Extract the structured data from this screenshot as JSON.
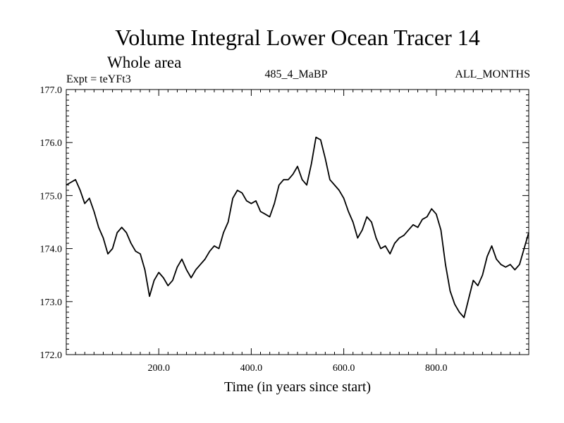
{
  "chart_data": {
    "type": "line",
    "title": "Volume Integral Lower Ocean Tracer 14",
    "subtitle": "Whole area",
    "experiment_label": "Expt = teYFt3",
    "center_label": "485_4_MaBP",
    "right_label": "ALL_MONTHS",
    "xlabel": "Time (in years since start)",
    "ylabel": "",
    "xlim": [
      0,
      1000
    ],
    "ylim": [
      172.0,
      177.0
    ],
    "x_ticks": [
      200,
      400,
      600,
      800
    ],
    "x_tick_labels": [
      "200.0",
      "400.0",
      "600.0",
      "800.0"
    ],
    "y_ticks": [
      172,
      173,
      174,
      175,
      176,
      177
    ],
    "y_tick_labels": [
      "172.0",
      "173.0",
      "174.0",
      "175.0",
      "176.0",
      "177.0"
    ],
    "line_color": "#000000",
    "series": [
      {
        "name": "Lower Ocean Tracer 14",
        "x": [
          0,
          10,
          20,
          30,
          40,
          50,
          60,
          70,
          80,
          90,
          100,
          110,
          120,
          130,
          140,
          150,
          160,
          170,
          180,
          190,
          200,
          210,
          220,
          230,
          240,
          250,
          260,
          270,
          280,
          290,
          300,
          310,
          320,
          330,
          340,
          350,
          360,
          370,
          380,
          390,
          400,
          410,
          420,
          430,
          440,
          450,
          460,
          470,
          480,
          490,
          500,
          510,
          520,
          530,
          540,
          550,
          560,
          570,
          580,
          590,
          600,
          610,
          620,
          630,
          640,
          650,
          660,
          670,
          680,
          690,
          700,
          710,
          720,
          730,
          740,
          750,
          760,
          770,
          780,
          790,
          800,
          810,
          820,
          830,
          840,
          850,
          860,
          870,
          880,
          890,
          900,
          910,
          920,
          930,
          940,
          950,
          960,
          970,
          980,
          990,
          1000
        ],
        "values": [
          175.2,
          175.25,
          175.3,
          175.1,
          174.85,
          174.95,
          174.7,
          174.4,
          174.2,
          173.9,
          174.0,
          174.3,
          174.4,
          174.3,
          174.1,
          173.95,
          173.9,
          173.6,
          173.1,
          173.4,
          173.55,
          173.45,
          173.3,
          173.4,
          173.65,
          173.8,
          173.6,
          173.45,
          173.6,
          173.7,
          173.8,
          173.95,
          174.05,
          174.0,
          174.3,
          174.5,
          174.95,
          175.1,
          175.05,
          174.9,
          174.85,
          174.9,
          174.7,
          174.65,
          174.6,
          174.85,
          175.2,
          175.3,
          175.3,
          175.4,
          175.55,
          175.3,
          175.2,
          175.6,
          176.1,
          176.05,
          175.7,
          175.3,
          175.2,
          175.1,
          174.95,
          174.7,
          174.5,
          174.2,
          174.35,
          174.6,
          174.5,
          174.2,
          174.0,
          174.05,
          173.9,
          174.1,
          174.2,
          174.25,
          174.35,
          174.45,
          174.4,
          174.55,
          174.6,
          174.75,
          174.65,
          174.35,
          173.7,
          173.2,
          172.95,
          172.8,
          172.7,
          173.05,
          173.4,
          173.3,
          173.5,
          173.85,
          174.05,
          173.8,
          173.7,
          173.65,
          173.7,
          173.6,
          173.7,
          174.0,
          174.3
        ]
      }
    ]
  }
}
